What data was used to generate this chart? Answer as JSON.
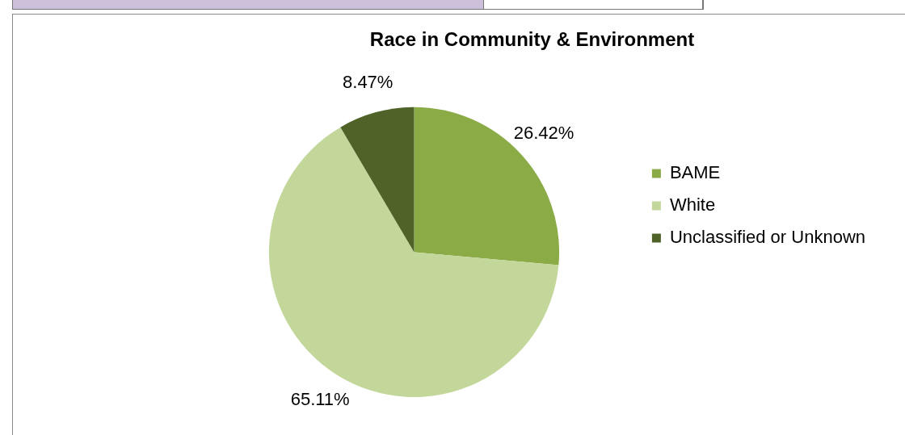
{
  "chart_data": {
    "type": "pie",
    "title": "Race in Community & Environment",
    "categories": [
      "BAME",
      "White",
      "Unclassified or Unknown"
    ],
    "values": [
      26.42,
      65.11,
      8.47
    ],
    "colors": [
      "#8aab46",
      "#c4d79b",
      "#4f6228"
    ],
    "value_labels": [
      "26.42%",
      "65.11%",
      "8.47%"
    ],
    "legend": "right"
  }
}
